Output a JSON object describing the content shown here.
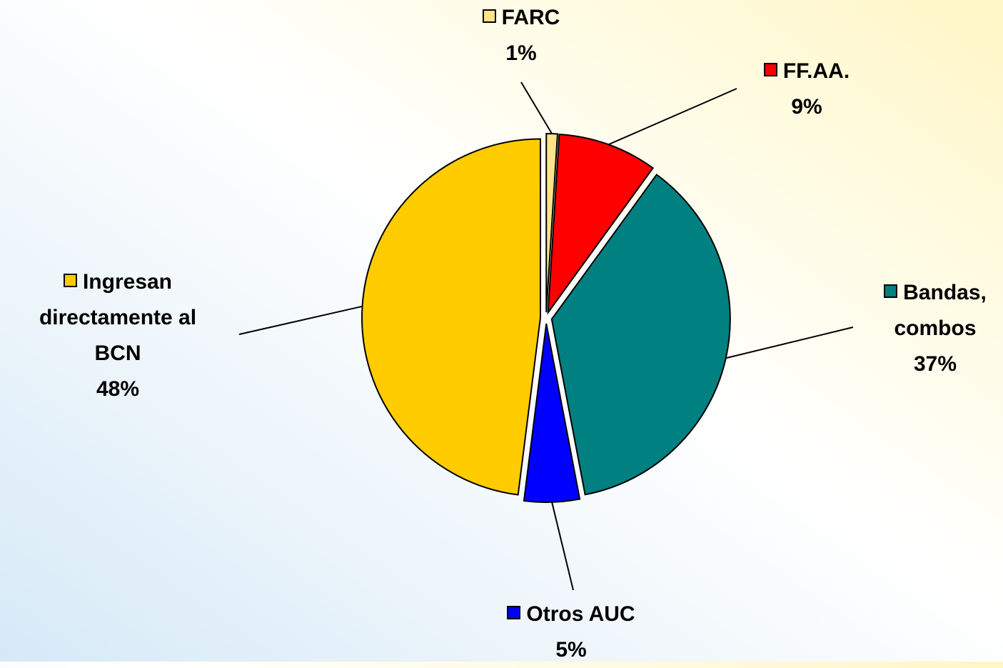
{
  "chart_data": {
    "type": "pie",
    "categories": [
      "FARC",
      "FF.AA.",
      "Bandas, combos",
      "Otros AUC",
      "Ingresan directamente al BCN"
    ],
    "values": [
      1,
      9,
      37,
      5,
      48
    ],
    "value_labels": [
      "1%",
      "9%",
      "37%",
      "5%",
      "48%"
    ],
    "colors": [
      "#ffe38a",
      "#ff0000",
      "#008080",
      "#0000ff",
      "#ffcc00"
    ]
  }
}
